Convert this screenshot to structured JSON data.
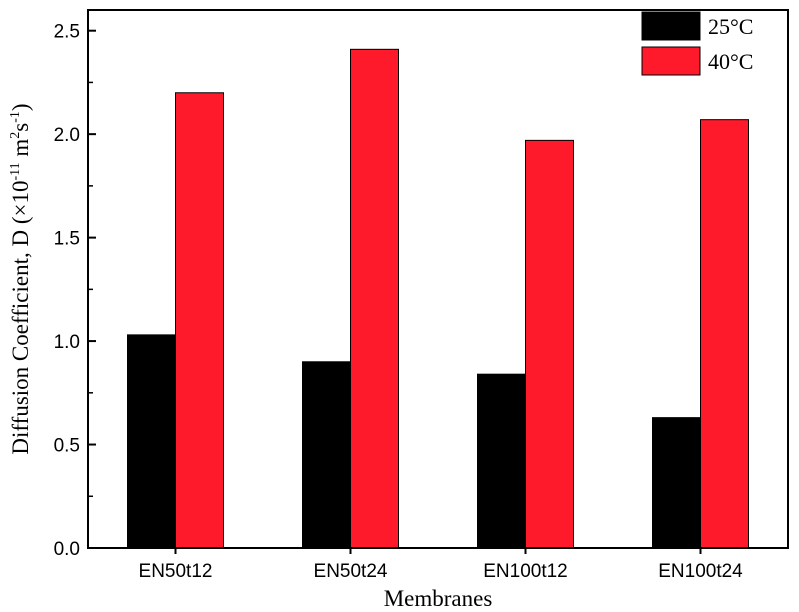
{
  "chart_data": {
    "type": "bar",
    "categories": [
      "EN50t12",
      "EN50t24",
      "EN100t12",
      "EN100t24"
    ],
    "series": [
      {
        "name": "25°C",
        "color": "#000000",
        "values": [
          1.03,
          0.9,
          0.84,
          0.63
        ]
      },
      {
        "name": "40°C",
        "color": "#ff1a2b",
        "values": [
          2.2,
          2.41,
          1.97,
          2.07
        ]
      }
    ],
    "xlabel": "Membranes",
    "ylabel": {
      "prefix": "Diffusion Coefficient, D (×10",
      "exp1": "-11",
      "mid": " m",
      "exp2": "2",
      "mid2": "s",
      "exp3": "-1",
      "suffix": ")"
    },
    "ylim": [
      0,
      2.6
    ],
    "yticks": [
      "0.0",
      "0.5",
      "1.0",
      "1.5",
      "2.0",
      "2.5"
    ],
    "legend_position": "top-right",
    "grid": false
  }
}
